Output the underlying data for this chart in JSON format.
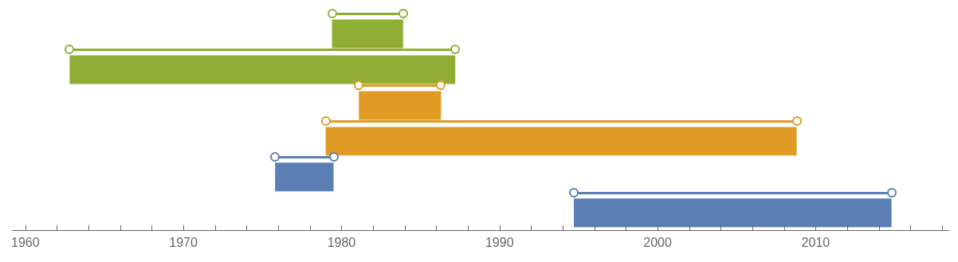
{
  "chart_data": {
    "type": "bar",
    "orientation": "horizontal",
    "categories": [
      null,
      null,
      null,
      null,
      null,
      null
    ],
    "series": [
      {
        "colors": [
          "#8fae33",
          "#8fae33",
          "#e09b24",
          "#e09b24",
          "#5b7fb4",
          "#5b7fb4"
        ],
        "base": [
          1979.4,
          1962.8,
          1981.1,
          1979.0,
          1975.8,
          1994.7
        ],
        "values": [
          4.5,
          24.4,
          5.2,
          29.8,
          3.7,
          20.1
        ]
      }
    ],
    "xlim": [
      1959.2,
      2018.4
    ],
    "xticks": [
      1960,
      {
        "value": 1962,
        "label": null
      },
      {
        "value": 1964,
        "label": null
      },
      {
        "value": 1966,
        "label": null
      },
      {
        "value": 1968,
        "label": null
      },
      1970,
      {
        "value": 1972,
        "label": null
      },
      {
        "value": 1974,
        "label": null
      },
      {
        "value": 1976,
        "label": null
      },
      {
        "value": 1978,
        "label": null
      },
      1980,
      {
        "value": 1982,
        "label": null
      },
      {
        "value": 1984,
        "label": null
      },
      {
        "value": 1986,
        "label": null
      },
      {
        "value": 1988,
        "label": null
      },
      1990,
      {
        "value": 1992,
        "label": null
      },
      {
        "value": 1994,
        "label": null
      },
      {
        "value": 1996,
        "label": null
      },
      {
        "value": 1998,
        "label": null
      },
      2000,
      {
        "value": 2002,
        "label": null
      },
      {
        "value": 2004,
        "label": null
      },
      {
        "value": 2006,
        "label": null
      },
      {
        "value": 2008,
        "label": null
      },
      2010,
      {
        "value": 2012,
        "label": null
      },
      {
        "value": 2014,
        "label": null
      },
      {
        "value": 2016,
        "label": null
      },
      {
        "value": 2018,
        "label": null
      }
    ]
  }
}
